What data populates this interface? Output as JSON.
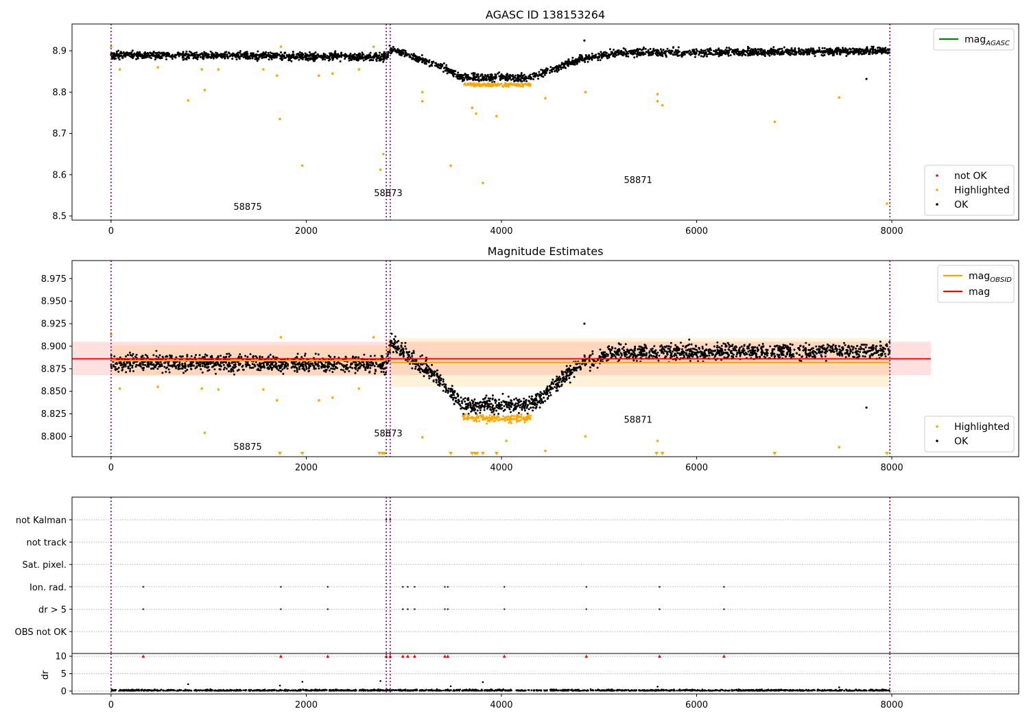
{
  "chart_data": [
    {
      "type": "scatter",
      "title": "AGASC ID 138153264",
      "xlim": [
        -400,
        9300
      ],
      "ylim": [
        8.49,
        8.965
      ],
      "x_ticks": [
        0,
        2000,
        4000,
        6000,
        8000
      ],
      "y_ticks": [
        8.5,
        8.6,
        8.7,
        8.8,
        8.9
      ],
      "grid": false,
      "obsid_boundaries": [
        0,
        2820,
        2860,
        7980
      ],
      "obsid_labels": [
        {
          "text": "58875",
          "x": 1400,
          "y": 8.515
        },
        {
          "text": "58873",
          "x": 2840,
          "y": 8.548
        },
        {
          "text": "58871",
          "x": 5400,
          "y": 8.58
        }
      ],
      "legend_lines": [
        {
          "label": "mag",
          "sub": "AGASC",
          "color": "#008000"
        }
      ],
      "legend_points": [
        {
          "label": "not OK",
          "color": "#ff0000"
        },
        {
          "label": "Highlighted",
          "color": "#ffa500"
        },
        {
          "label": "OK",
          "color": "#000000"
        }
      ],
      "ok_profile": [
        [
          0,
          8.89
        ],
        [
          2820,
          8.885
        ],
        [
          2870,
          8.905
        ],
        [
          3400,
          8.86
        ],
        [
          3600,
          8.835
        ],
        [
          4300,
          8.835
        ],
        [
          4800,
          8.88
        ],
        [
          5200,
          8.895
        ],
        [
          8000,
          8.9
        ]
      ],
      "ok_scatter": 0.009,
      "highlighted_outliers": [
        {
          "x": 0,
          "y": 8.91
        },
        {
          "x": 90,
          "y": 8.855
        },
        {
          "x": 480,
          "y": 8.86
        },
        {
          "x": 790,
          "y": 8.78
        },
        {
          "x": 930,
          "y": 8.855
        },
        {
          "x": 960,
          "y": 8.805
        },
        {
          "x": 1100,
          "y": 8.855
        },
        {
          "x": 1560,
          "y": 8.855
        },
        {
          "x": 1700,
          "y": 8.84
        },
        {
          "x": 1730,
          "y": 8.735
        },
        {
          "x": 1740,
          "y": 8.91
        },
        {
          "x": 1960,
          "y": 8.622
        },
        {
          "x": 2130,
          "y": 8.84
        },
        {
          "x": 2270,
          "y": 8.845
        },
        {
          "x": 2540,
          "y": 8.855
        },
        {
          "x": 2690,
          "y": 8.91
        },
        {
          "x": 2760,
          "y": 8.612
        },
        {
          "x": 2790,
          "y": 8.65
        },
        {
          "x": 3190,
          "y": 8.8
        },
        {
          "x": 3190,
          "y": 8.778
        },
        {
          "x": 3480,
          "y": 8.622
        },
        {
          "x": 3700,
          "y": 8.762
        },
        {
          "x": 3740,
          "y": 8.748
        },
        {
          "x": 3810,
          "y": 8.58
        },
        {
          "x": 3950,
          "y": 8.742
        },
        {
          "x": 4450,
          "y": 8.785
        },
        {
          "x": 4860,
          "y": 8.8
        },
        {
          "x": 5600,
          "y": 8.795
        },
        {
          "x": 5600,
          "y": 8.778
        },
        {
          "x": 5650,
          "y": 8.768
        },
        {
          "x": 6800,
          "y": 8.728
        },
        {
          "x": 7460,
          "y": 8.787
        },
        {
          "x": 7950,
          "y": 8.53
        }
      ],
      "ok_outliers": [
        {
          "x": 7740,
          "y": 8.832
        },
        {
          "x": 4850,
          "y": 8.925
        }
      ]
    },
    {
      "type": "scatter",
      "title": "Magnitude Estimates",
      "xlim": [
        -400,
        9300
      ],
      "ylim": [
        8.7775,
        8.995
      ],
      "x_ticks": [
        0,
        2000,
        4000,
        6000,
        8000
      ],
      "y_ticks": [
        8.8,
        8.825,
        8.85,
        8.875,
        8.9,
        8.925,
        8.95,
        8.975
      ],
      "y_tick_labels": [
        "8.800",
        "8.825",
        "8.850",
        "8.875",
        "8.900",
        "8.925",
        "8.950",
        "8.975"
      ],
      "grid": false,
      "obsid_boundaries": [
        0,
        2820,
        2860,
        7980
      ],
      "obsid_labels": [
        {
          "text": "58875",
          "x": 1400,
          "y": 8.785
        },
        {
          "text": "58873",
          "x": 2840,
          "y": 8.8
        },
        {
          "text": "58871",
          "x": 5400,
          "y": 8.815
        }
      ],
      "legend_lines": [
        {
          "label": "mag",
          "sub": "OBSID",
          "color": "#ffa500"
        },
        {
          "label": "mag",
          "sub": "",
          "color": "#ff0000"
        }
      ],
      "legend_points": [
        {
          "label": "Highlighted",
          "color": "#ffa500"
        },
        {
          "label": "OK",
          "color": "#000000"
        }
      ],
      "mag_line": {
        "value": 8.886,
        "lo": 8.868,
        "hi": 8.905,
        "x": [
          -400,
          8400
        ],
        "color": "#ff0000"
      },
      "obsid_mags": [
        {
          "x": [
            0,
            2820
          ],
          "value": 8.884,
          "lo": 8.867,
          "hi": 8.901
        },
        {
          "x": [
            2820,
            2860
          ],
          "value": 8.897,
          "lo": 8.885,
          "hi": 8.91
        },
        {
          "x": [
            2860,
            7980
          ],
          "value": 8.882,
          "lo": 8.855,
          "hi": 8.909
        }
      ],
      "ok_profile": [
        [
          0,
          8.882
        ],
        [
          2820,
          8.88
        ],
        [
          2870,
          8.905
        ],
        [
          3400,
          8.86
        ],
        [
          3600,
          8.835
        ],
        [
          4300,
          8.835
        ],
        [
          4800,
          8.88
        ],
        [
          5200,
          8.893
        ],
        [
          8000,
          8.895
        ]
      ],
      "ok_scatter": 0.009,
      "highlighted_outliers": [
        {
          "x": 0,
          "y": 8.913
        },
        {
          "x": 90,
          "y": 8.853
        },
        {
          "x": 480,
          "y": 8.855
        },
        {
          "x": 930,
          "y": 8.853
        },
        {
          "x": 960,
          "y": 8.804
        },
        {
          "x": 1100,
          "y": 8.852
        },
        {
          "x": 1560,
          "y": 8.852
        },
        {
          "x": 1700,
          "y": 8.84
        },
        {
          "x": 1740,
          "y": 8.91
        },
        {
          "x": 2130,
          "y": 8.84
        },
        {
          "x": 2270,
          "y": 8.843
        },
        {
          "x": 2540,
          "y": 8.853
        },
        {
          "x": 2690,
          "y": 8.91
        },
        {
          "x": 3190,
          "y": 8.799
        },
        {
          "x": 4050,
          "y": 8.795
        },
        {
          "x": 4450,
          "y": 8.784
        },
        {
          "x": 4860,
          "y": 8.8
        },
        {
          "x": 5600,
          "y": 8.795
        },
        {
          "x": 7460,
          "y": 8.788
        }
      ],
      "ok_outliers": [
        {
          "x": 7740,
          "y": 8.832
        },
        {
          "x": 4850,
          "y": 8.925
        }
      ],
      "clipped_markers": [
        1730,
        1960,
        2750,
        2780,
        2800,
        3480,
        3700,
        3730,
        3750,
        3810,
        3950,
        5590,
        5650,
        6800,
        7950
      ]
    },
    {
      "type": "scatter",
      "xlim": [
        -400,
        9300
      ],
      "x_ticks": [
        0,
        2000,
        4000,
        6000,
        8000
      ],
      "grid": true,
      "obsid_boundaries": [
        0,
        2820,
        2860,
        7980
      ],
      "flag_rows": [
        "not Kalman",
        "not track",
        "Sat. pixel.",
        "Ion. rad.",
        "dr > 5",
        "OBS not OK"
      ],
      "flag_points": [
        {
          "row": "not Kalman",
          "x": [
            2820,
            2860
          ]
        },
        {
          "row": "Ion. rad.",
          "x": [
            330,
            1740,
            2220,
            2990,
            3040,
            3110,
            3420,
            3450,
            4030,
            4870,
            5620,
            6280
          ]
        },
        {
          "row": "dr > 5",
          "x": [
            330,
            1740,
            2220,
            2990,
            3040,
            3110,
            3420,
            3450,
            4030,
            4870,
            5620,
            6280
          ]
        }
      ],
      "dr_ylabel": "dr",
      "dr_ylim": [
        -0.8,
        10.8
      ],
      "dr_y_ticks": [
        0,
        5,
        10
      ],
      "dr_clipped": [
        330,
        1740,
        2220,
        2820,
        2860,
        2990,
        3040,
        3110,
        3420,
        3450,
        4030,
        4870,
        5620,
        6280
      ],
      "dr_outliers": [
        {
          "x": 790,
          "y": 2.0
        },
        {
          "x": 1730,
          "y": 1.6
        },
        {
          "x": 1960,
          "y": 2.7
        },
        {
          "x": 2760,
          "y": 2.9
        },
        {
          "x": 3480,
          "y": 1.4
        },
        {
          "x": 3810,
          "y": 2.6
        },
        {
          "x": 5600,
          "y": 1.3
        },
        {
          "x": 7460,
          "y": 1.1
        }
      ]
    }
  ]
}
